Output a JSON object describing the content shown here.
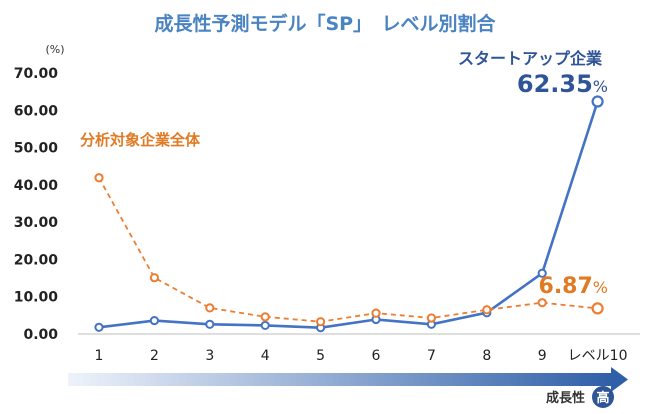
{
  "chart_data": {
    "type": "line",
    "title": "成長性予測モデル「SP」　レベル別割合",
    "unit": "(%)",
    "categories": [
      "1",
      "2",
      "3",
      "4",
      "5",
      "6",
      "7",
      "8",
      "9",
      "レベル10"
    ],
    "ylim": [
      0,
      70
    ],
    "yticks": [
      "0.00",
      "10.00",
      "20.00",
      "30.00",
      "40.00",
      "50.00",
      "60.00",
      "70.00"
    ],
    "grid": false,
    "series": [
      {
        "name": "スタートアップ企業",
        "color": "#4472c4",
        "style": "solid",
        "values": [
          1.8,
          3.6,
          2.6,
          2.3,
          1.7,
          3.9,
          2.6,
          5.7,
          16.3,
          62.35
        ]
      },
      {
        "name": "分析対象企業全体",
        "color": "#ed7d31",
        "style": "dashed",
        "values": [
          41.9,
          15.1,
          7.0,
          4.6,
          3.3,
          5.6,
          4.3,
          6.5,
          8.4,
          6.87
        ]
      }
    ],
    "end_labels": {
      "blue_value": "62.35",
      "orange_value": "6.87",
      "percent": "%"
    },
    "axis_note": {
      "label": "成長性",
      "badge": "高"
    }
  }
}
